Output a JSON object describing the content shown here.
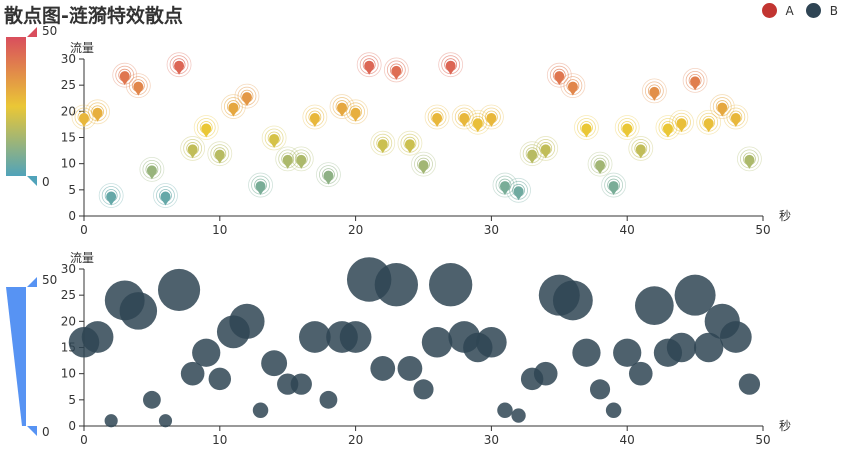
{
  "title": "散点图-涟漪特效散点",
  "legend": [
    {
      "name": "A",
      "color": "#c23531"
    },
    {
      "name": "B",
      "color": "#2f4554"
    }
  ],
  "visual_map_top": {
    "max_label": "50",
    "min_label": "0",
    "colors": [
      "#d94e5d",
      "#eac736",
      "#50a3ba"
    ]
  },
  "visual_map_bottom": {
    "max_label": "50",
    "min_label": "0",
    "color": "#5793f3"
  },
  "chart_data": [
    {
      "type": "scatter",
      "series_name": "A",
      "effect": "ripple",
      "xlabel": "秒",
      "ylabel": "流量",
      "xlim": [
        0,
        50
      ],
      "ylim": [
        0,
        30
      ],
      "xticks": [
        0,
        10,
        20,
        30,
        40,
        50
      ],
      "yticks": [
        0,
        5,
        10,
        15,
        20,
        25,
        30
      ],
      "x": [
        0,
        1,
        2,
        3,
        4,
        5,
        6,
        7,
        8,
        9,
        10,
        11,
        12,
        13,
        14,
        15,
        16,
        17,
        18,
        19,
        20,
        21,
        22,
        23,
        24,
        25,
        26,
        27,
        28,
        29,
        30,
        31,
        32,
        33,
        34,
        35,
        36,
        37,
        38,
        39,
        40,
        41,
        42,
        43,
        44,
        45,
        46,
        47,
        48,
        49
      ],
      "y": [
        17,
        18,
        2,
        25,
        23,
        7,
        2,
        27,
        11,
        15,
        10,
        19,
        21,
        4,
        13,
        9,
        9,
        17,
        6,
        19,
        18,
        27,
        12,
        26,
        12,
        8,
        17,
        27,
        17,
        16,
        17,
        4,
        3,
        10,
        11,
        25,
        23,
        15,
        8,
        4,
        15,
        11,
        22,
        15,
        16,
        24,
        16,
        19,
        17,
        9
      ]
    },
    {
      "type": "scatter",
      "series_name": "B",
      "xlabel": "秒",
      "ylabel": "流量",
      "xlim": [
        0,
        50
      ],
      "ylim": [
        0,
        30
      ],
      "xticks": [
        0,
        10,
        20,
        30,
        40,
        50
      ],
      "yticks": [
        0,
        5,
        10,
        15,
        20,
        25,
        30
      ],
      "x": [
        0,
        1,
        2,
        3,
        4,
        5,
        6,
        7,
        8,
        9,
        10,
        11,
        12,
        13,
        14,
        15,
        16,
        17,
        18,
        19,
        20,
        21,
        22,
        23,
        24,
        25,
        26,
        27,
        28,
        29,
        30,
        31,
        32,
        33,
        34,
        35,
        36,
        37,
        38,
        39,
        40,
        41,
        42,
        43,
        44,
        45,
        46,
        47,
        48,
        49
      ],
      "y": [
        16,
        17,
        1,
        24,
        22,
        5,
        1,
        26,
        10,
        14,
        9,
        18,
        20,
        3,
        12,
        8,
        8,
        17,
        5,
        17,
        17,
        28,
        11,
        27,
        11,
        7,
        16,
        27,
        17,
        15,
        16,
        3,
        2,
        9,
        10,
        25,
        24,
        14,
        7,
        3,
        14,
        10,
        23,
        14,
        15,
        25,
        15,
        20,
        17,
        8
      ]
    }
  ]
}
